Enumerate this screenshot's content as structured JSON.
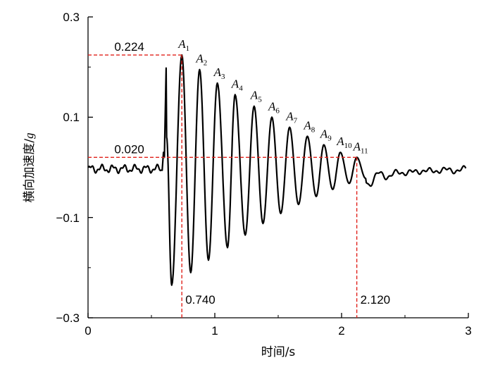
{
  "chart_data": {
    "type": "line",
    "title": "",
    "xlabel": "时间/s",
    "ylabel_prefix": "横向加速度/",
    "ylabel_unit": "g",
    "xlim": [
      0,
      3
    ],
    "ylim": [
      -0.3,
      0.3
    ],
    "xticks": [
      0,
      1,
      2,
      3
    ],
    "xtick_labels": [
      "0",
      "1",
      "2",
      "3"
    ],
    "yticks": [
      -0.3,
      -0.1,
      0.1,
      0.3
    ],
    "ytick_labels": [
      "−0.3",
      "−0.1",
      "0.1",
      "0.3"
    ],
    "grid": false,
    "series_color": "#000000",
    "reference_color": "#e0201a",
    "reference_lines": {
      "h1": {
        "y": 0.224,
        "label": "0.224"
      },
      "h2": {
        "y": 0.02,
        "label": "0.020"
      },
      "v1": {
        "x": 0.74,
        "label": "0.740"
      },
      "v2": {
        "x": 2.12,
        "label": "2.120"
      }
    },
    "peaks": [
      {
        "letter": "A",
        "sub": "1",
        "x": 0.74,
        "y": 0.224
      },
      {
        "letter": "A",
        "sub": "2",
        "x": 0.88,
        "y": 0.195
      },
      {
        "letter": "A",
        "sub": "3",
        "x": 1.02,
        "y": 0.168
      },
      {
        "letter": "A",
        "sub": "4",
        "x": 1.16,
        "y": 0.145
      },
      {
        "letter": "A",
        "sub": "5",
        "x": 1.31,
        "y": 0.122
      },
      {
        "letter": "A",
        "sub": "6",
        "x": 1.45,
        "y": 0.1
      },
      {
        "letter": "A",
        "sub": "7",
        "x": 1.59,
        "y": 0.08
      },
      {
        "letter": "A",
        "sub": "8",
        "x": 1.73,
        "y": 0.062
      },
      {
        "letter": "A",
        "sub": "9",
        "x": 1.86,
        "y": 0.045
      },
      {
        "letter": "A",
        "sub": "10",
        "x": 1.99,
        "y": 0.03
      },
      {
        "letter": "A",
        "sub": "11",
        "x": 2.12,
        "y": 0.02
      }
    ],
    "troughs": [
      {
        "x": 0.66,
        "y": -0.235
      },
      {
        "x": 0.81,
        "y": -0.21
      },
      {
        "x": 0.95,
        "y": -0.185
      },
      {
        "x": 1.1,
        "y": -0.16
      },
      {
        "x": 1.24,
        "y": -0.135
      },
      {
        "x": 1.38,
        "y": -0.112
      },
      {
        "x": 1.52,
        "y": -0.092
      },
      {
        "x": 1.66,
        "y": -0.074
      },
      {
        "x": 1.8,
        "y": -0.058
      },
      {
        "x": 1.93,
        "y": -0.044
      },
      {
        "x": 2.06,
        "y": -0.032
      },
      {
        "x": 2.19,
        "y": -0.022
      }
    ],
    "initial_spike": {
      "x_start": 0.59,
      "x_end": 0.62,
      "y_peak": 0.198
    }
  }
}
